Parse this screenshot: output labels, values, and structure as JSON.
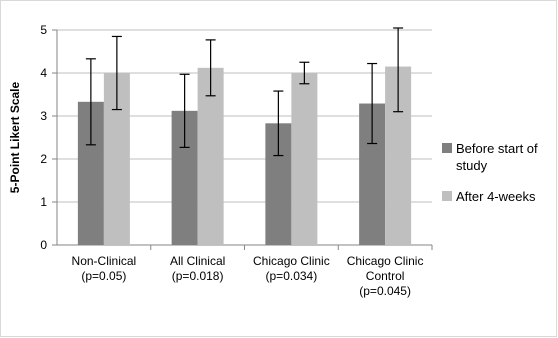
{
  "chart_data": {
    "type": "bar",
    "ylabel": "5-Point Likert Scale",
    "xlabel": "",
    "title": "",
    "ylim": [
      0,
      5
    ],
    "yticks": [
      0,
      1,
      2,
      3,
      4,
      5
    ],
    "grid": true,
    "legend_position": "right",
    "categories": [
      [
        "Non-Clinical",
        "(p=0.05)"
      ],
      [
        "All Clinical",
        "(p=0.018)"
      ],
      [
        "Chicago Clinic",
        "(p=0.034)"
      ],
      [
        "Chicago Clinic",
        "Control",
        "(p=0.045)"
      ]
    ],
    "series": [
      {
        "name": [
          "Before start of",
          "study"
        ],
        "color": "#7f7f7f",
        "values": [
          3.33,
          3.12,
          2.83,
          3.29
        ],
        "errors": [
          1.0,
          0.85,
          0.75,
          0.93
        ]
      },
      {
        "name": [
          "After 4-weeks"
        ],
        "color": "#bfbfbf",
        "values": [
          4.0,
          4.12,
          4.0,
          4.15
        ],
        "errors": [
          0.85,
          0.65,
          0.25,
          1.05
        ]
      }
    ]
  }
}
